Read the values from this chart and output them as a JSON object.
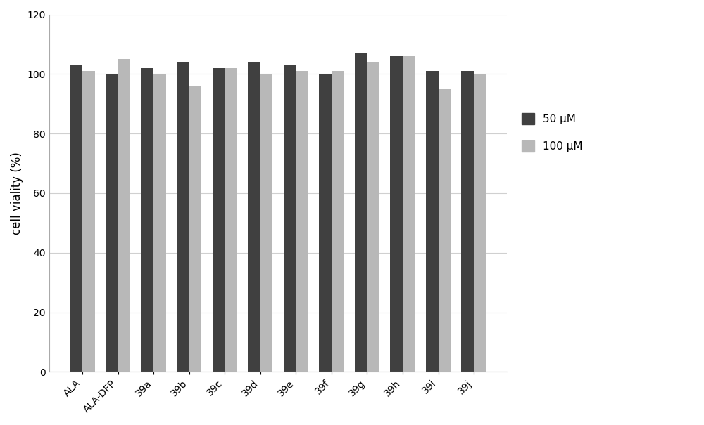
{
  "categories": [
    "ALA",
    "ALA-DFP",
    "39a",
    "39b",
    "39c",
    "39d",
    "39e",
    "39f",
    "39g",
    "39h",
    "39i",
    "39j"
  ],
  "values_50uM": [
    103,
    100,
    102,
    104,
    102,
    104,
    103,
    100,
    107,
    106,
    101,
    101
  ],
  "values_100uM": [
    101,
    105,
    100,
    96,
    102,
    100,
    101,
    101,
    104,
    106,
    95,
    100
  ],
  "color_50uM": "#404040",
  "color_100uM": "#b8b8b8",
  "ylabel": "cell viality (%)",
  "ylim": [
    0,
    120
  ],
  "yticks": [
    0,
    20,
    40,
    60,
    80,
    100,
    120
  ],
  "legend_labels": [
    "50 μM",
    "100 μM"
  ],
  "bar_width": 0.35,
  "figure_width": 10.0,
  "figure_height": 6.05
}
